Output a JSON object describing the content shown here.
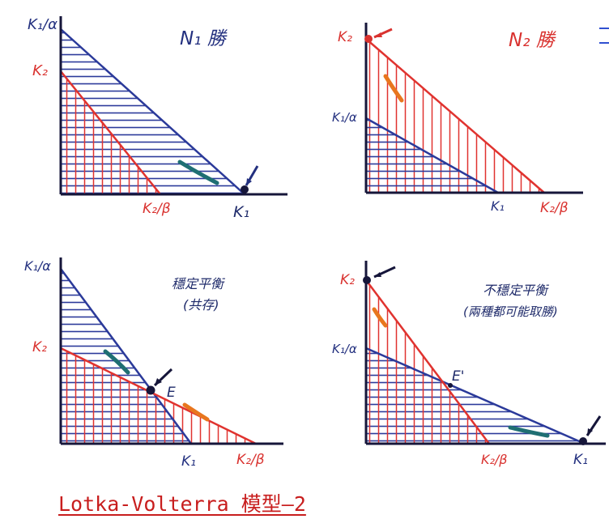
{
  "caption": "Lotka-Volterra 模型—2",
  "colors": {
    "blue": "#2b3a9a",
    "red": "#e0332f",
    "dark": "#16163a",
    "teal": "#1f6f73",
    "orange": "#e8761e"
  },
  "panels": [
    {
      "title": "N₁ 勝",
      "y_labels": {
        "upper": "K₁/α",
        "lower": "K₂"
      },
      "x_labels": {
        "left": "K₂/β",
        "right": "K₁"
      }
    },
    {
      "title": "N₂ 勝",
      "y_labels": {
        "upper": "K₂",
        "lower": "K₁/α"
      },
      "x_labels": {
        "left": "K₁",
        "right": "K₂/β"
      }
    },
    {
      "title": "穩定平衡",
      "subtitle": "(共存)",
      "y_labels": {
        "upper": "K₁/α",
        "lower": "K₂"
      },
      "x_labels": {
        "left": "K₁",
        "right": "K₂/β"
      },
      "point_label": "E"
    },
    {
      "title": "不穩定平衡",
      "subtitle": "(兩種都可能取勝)",
      "y_labels": {
        "upper": "K₂",
        "lower": "K₁/α"
      },
      "x_labels": {
        "left": "K₂/β",
        "right": "K₁"
      },
      "point_label": "E'"
    }
  ]
}
